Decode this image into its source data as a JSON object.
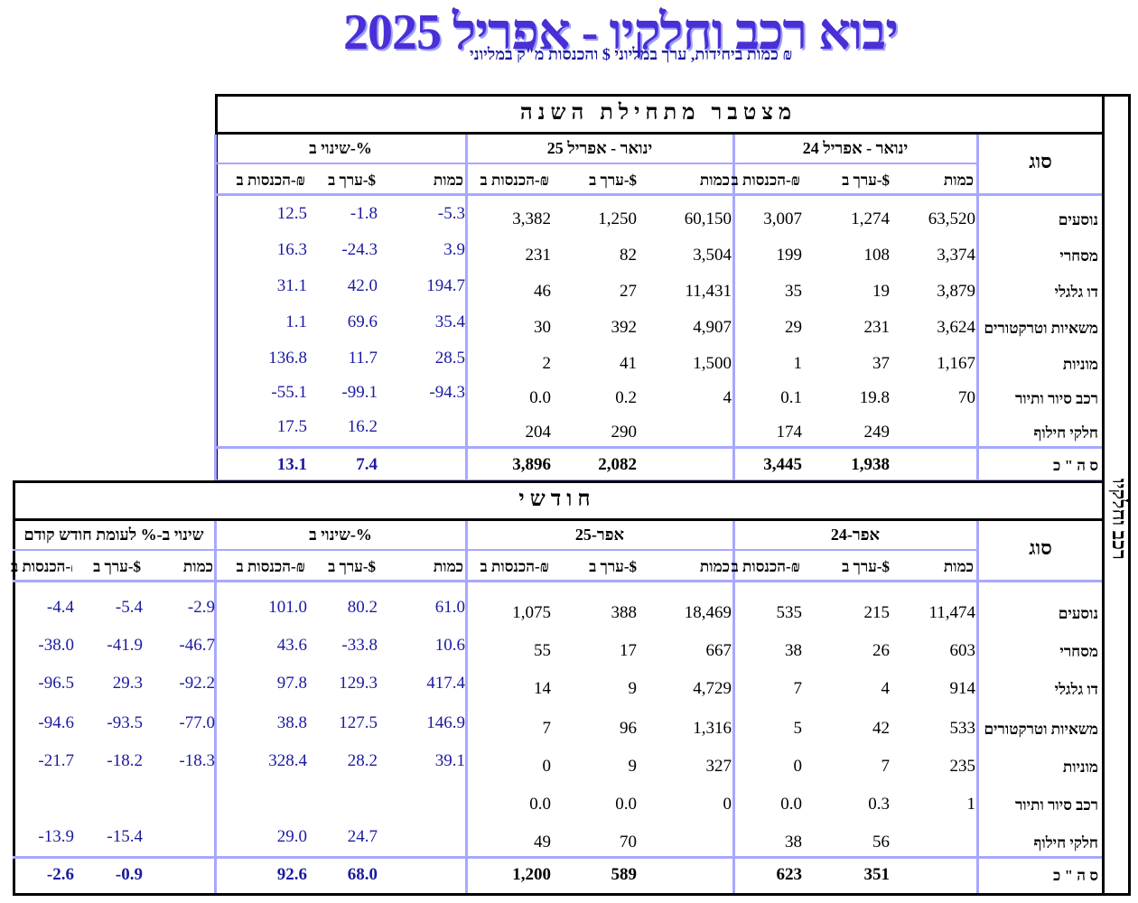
{
  "title": "יבוא רכב וחלקיו - אפריל 2025",
  "subtitle": "כמות ביחידות, ערך במליוני $ והכנסות מ\"ק במליוני ₪",
  "side_label": "רכב וחלקיו",
  "cumulative": {
    "section_title": "מצטבר מתחילת השנה",
    "type_header": "סוג",
    "groups": [
      "ינואר - אפריל 24",
      "ינואר - אפריל 25",
      "שינוי ב-%"
    ],
    "cols": [
      "כמות",
      "ערך ב-$",
      "הכנסות ב-₪",
      "כמות",
      "ערך ב-$",
      "הכנסות ב-₪",
      "כמות",
      "ערך ב-$",
      "הכנסות ב-₪"
    ],
    "rows": [
      {
        "label": "נוסעים",
        "v": [
          "63,520",
          "1,274",
          "3,007",
          "60,150",
          "1,250",
          "3,382",
          "-5.3",
          "-1.8",
          "12.5"
        ]
      },
      {
        "label": "מסחרי",
        "v": [
          "3,374",
          "108",
          "199",
          "3,504",
          "82",
          "231",
          "3.9",
          "-24.3",
          "16.3"
        ]
      },
      {
        "label": "דו גלגלי",
        "v": [
          "3,879",
          "19",
          "35",
          "11,431",
          "27",
          "46",
          "194.7",
          "42.0",
          "31.1"
        ]
      },
      {
        "label": "משאיות וטרקטורים",
        "v": [
          "3,624",
          "231",
          "29",
          "4,907",
          "392",
          "30",
          "35.4",
          "69.6",
          "1.1"
        ]
      },
      {
        "label": "מוניות",
        "v": [
          "1,167",
          "37",
          "1",
          "1,500",
          "41",
          "2",
          "28.5",
          "11.7",
          "136.8"
        ]
      },
      {
        "label": "רכב סיור ותיור",
        "v": [
          "70",
          "19.8",
          "0.1",
          "4",
          "0.2",
          "0.0",
          "-94.3",
          "-99.1",
          "-55.1"
        ]
      },
      {
        "label": "חלקי חילוף",
        "v": [
          "",
          "249",
          "174",
          "",
          "290",
          "204",
          "",
          "16.2",
          "17.5"
        ]
      }
    ],
    "total": {
      "label": "ס ה \" כ",
      "v": [
        "",
        "1,938",
        "3,445",
        "",
        "2,082",
        "3,896",
        "",
        "7.4",
        "13.1"
      ]
    }
  },
  "monthly": {
    "section_title": "חודשי",
    "type_header": "סוג",
    "groups": [
      "אפר-24",
      "אפר-25",
      "שינוי ב-%",
      "שינוי ב-% לעומת חודש קודם"
    ],
    "cols": [
      "כמות",
      "ערך ב-$",
      "הכנסות ב-₪",
      "כמות",
      "ערך ב-$",
      "הכנסות ב-₪",
      "כמות",
      "ערך ב-$",
      "הכנסות ב-₪",
      "כמות",
      "ערך ב-$",
      "הכנסות ב-₪"
    ],
    "rows": [
      {
        "label": "נוסעים",
        "v": [
          "11,474",
          "215",
          "535",
          "18,469",
          "388",
          "1,075",
          "61.0",
          "80.2",
          "101.0",
          "-2.9",
          "-5.4",
          "-4.4"
        ]
      },
      {
        "label": "מסחרי",
        "v": [
          "603",
          "26",
          "38",
          "667",
          "17",
          "55",
          "10.6",
          "-33.8",
          "43.6",
          "-46.7",
          "-41.9",
          "-38.0"
        ]
      },
      {
        "label": "דו גלגלי",
        "v": [
          "914",
          "4",
          "7",
          "4,729",
          "9",
          "14",
          "417.4",
          "129.3",
          "97.8",
          "-92.2",
          "29.3",
          "-96.5"
        ]
      },
      {
        "label": "משאיות וטרקטורים",
        "v": [
          "533",
          "42",
          "5",
          "1,316",
          "96",
          "7",
          "146.9",
          "127.5",
          "38.8",
          "-77.0",
          "-93.5",
          "-94.6"
        ]
      },
      {
        "label": "מוניות",
        "v": [
          "235",
          "7",
          "0",
          "327",
          "9",
          "0",
          "39.1",
          "28.2",
          "328.4",
          "-18.3",
          "-18.2",
          "-21.7"
        ]
      },
      {
        "label": "רכב סיור ותיור",
        "v": [
          "1",
          "0.3",
          "0.0",
          "0",
          "0.0",
          "0.0",
          "",
          "",
          "",
          "",
          "",
          ""
        ]
      },
      {
        "label": "חלקי חילוף",
        "v": [
          "",
          "56",
          "38",
          "",
          "70",
          "49",
          "",
          "24.7",
          "29.0",
          "",
          "-15.4",
          "-13.9"
        ]
      }
    ],
    "total": {
      "label": "ס ה \" כ",
      "v": [
        "",
        "351",
        "623",
        "",
        "589",
        "1,200",
        "",
        "68.0",
        "92.6",
        "",
        "-0.9",
        "-2.6"
      ]
    }
  }
}
